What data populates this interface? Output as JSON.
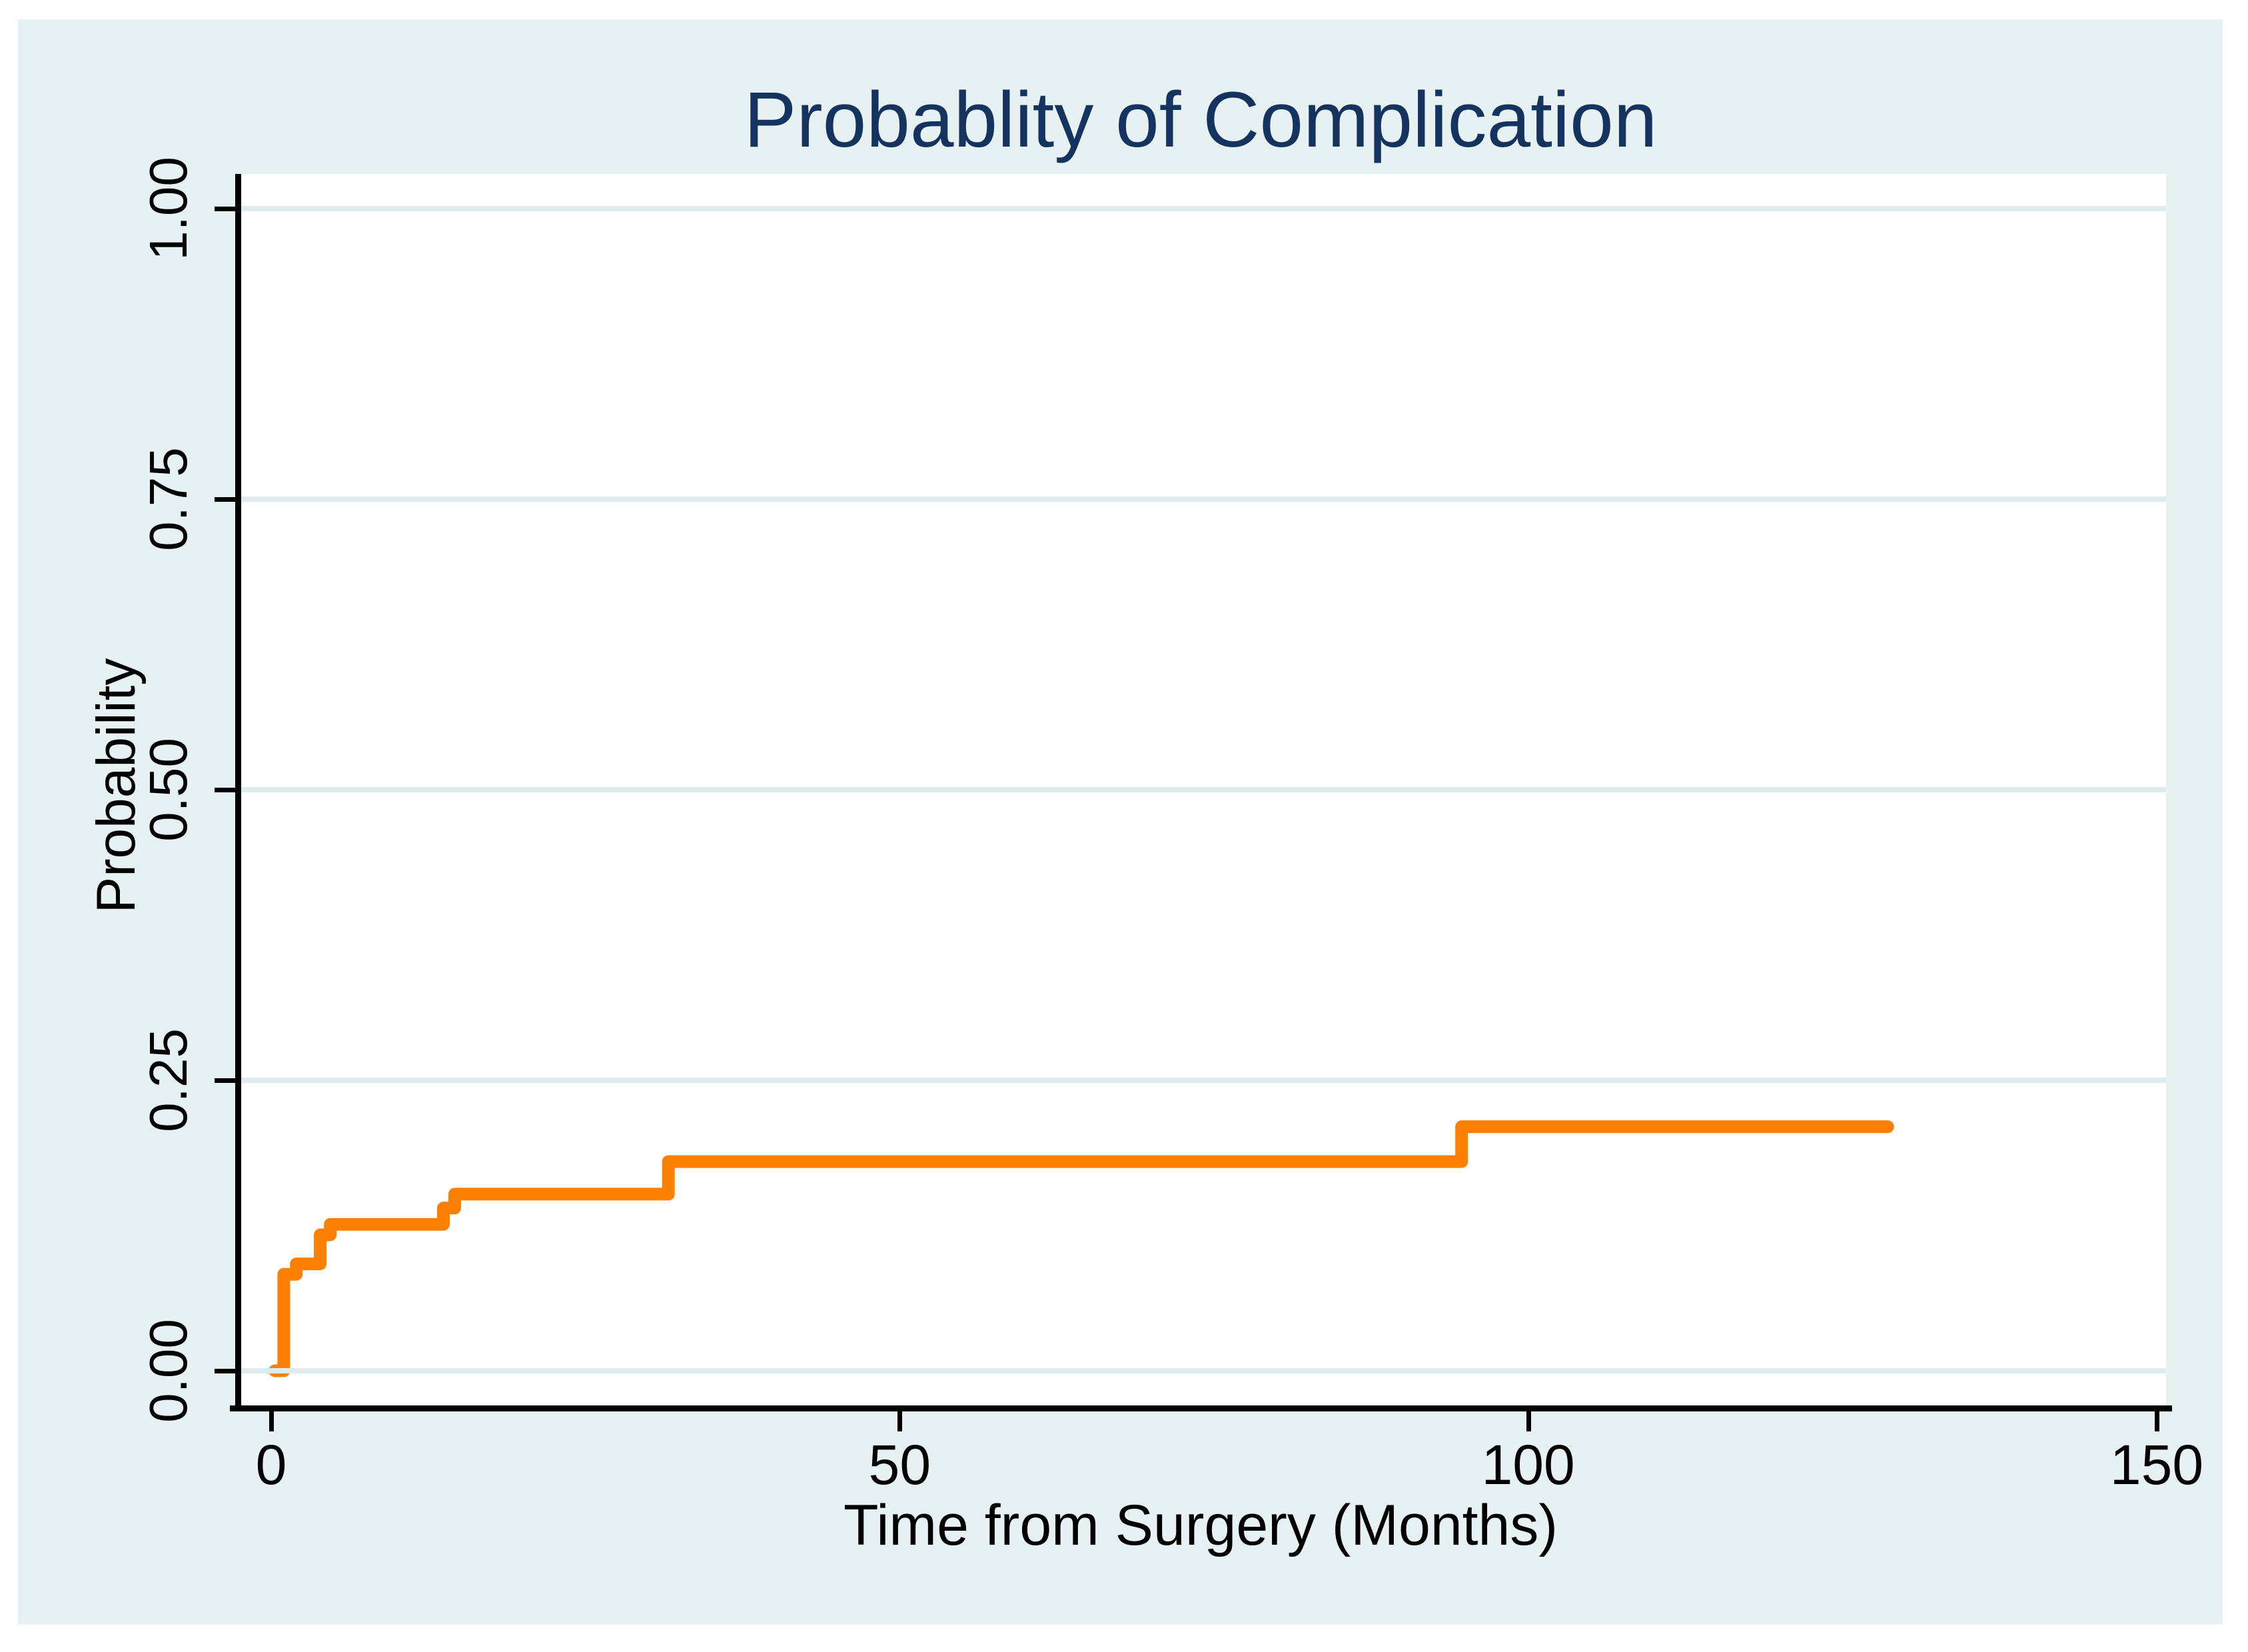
{
  "colors": {
    "figure_background": "#e8f1f2",
    "plot_background": "#ffffff",
    "gridline": "#dfecee",
    "axis": "#000000",
    "title_navy": "#14335f",
    "curve_orange": "#ff8000"
  },
  "chart_data": {
    "type": "line",
    "subtype": "kaplan-meier-failure-step",
    "title": "Probablity of Complication",
    "xlabel": "Time from Surgery (Months)",
    "ylabel": "Probability",
    "xlim": [
      0,
      150
    ],
    "ylim": [
      0,
      1
    ],
    "grid": "horizontal-only",
    "legend": "none",
    "x_ticks": [
      {
        "value": 0,
        "label": "0"
      },
      {
        "value": 50,
        "label": "50"
      },
      {
        "value": 100,
        "label": "100"
      },
      {
        "value": 150,
        "label": "150"
      }
    ],
    "y_ticks": [
      {
        "value": 0.0,
        "label": "0.00"
      },
      {
        "value": 0.25,
        "label": "0.25"
      },
      {
        "value": 0.5,
        "label": "0.50"
      },
      {
        "value": 0.75,
        "label": "0.75"
      },
      {
        "value": 1.0,
        "label": "1.00"
      }
    ],
    "series": [
      {
        "name": "probability-of-complication",
        "color": "#ff8000",
        "line_width": 19,
        "steps": [
          {
            "t": 0.3,
            "p": 0.0
          },
          {
            "t": 1.0,
            "p": 0.083
          },
          {
            "t": 2.0,
            "p": 0.092
          },
          {
            "t": 3.9,
            "p": 0.117
          },
          {
            "t": 4.7,
            "p": 0.126
          },
          {
            "t": 13.7,
            "p": 0.14
          },
          {
            "t": 14.6,
            "p": 0.152
          },
          {
            "t": 31.6,
            "p": 0.18
          },
          {
            "t": 94.7,
            "p": 0.21
          }
        ],
        "end_t": 128.6,
        "final_probability": 0.21
      }
    ]
  }
}
